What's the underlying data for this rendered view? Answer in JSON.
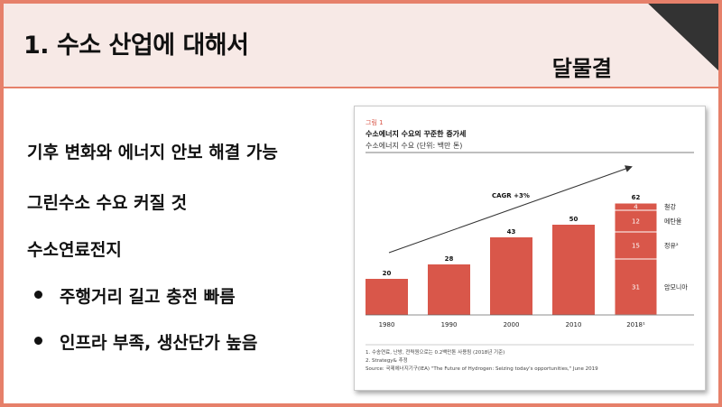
{
  "slide": {
    "title": "1. 수소 산업에 대해서",
    "author": "달물결",
    "points": [
      "기후 변화와 에너지 안보 해결 가능",
      "그린수소 수요 커질 것",
      "수소연료전지"
    ],
    "bullets": [
      "주행거리 길고 충전 빠름",
      "인프라 부족, 생산단가 높음"
    ]
  },
  "colors": {
    "accent": "#e6806a",
    "bar": "#d9574a",
    "header_bg": "#f7e9e6",
    "figure_label": "#d9574a"
  },
  "figure": {
    "label": "그림 1",
    "heading": "수소에너지 수요의 꾸준한 증가세",
    "subheading": "수소에너지 수요 (단위: 백만 톤)",
    "trend_label": "CAGR +3%",
    "notes": [
      "1. 수송연료, 난방, 전력원으로는 0.2백만톤 사용됨 (2018년 기준)",
      "2. Strategy& 추정",
      "Source: 국제에너지기구(IEA) \"The Future of Hydrogen: Seizing today's opportunities,\" June 2019"
    ]
  },
  "chart_data": {
    "type": "bar",
    "title": "수소에너지 수요 (단위: 백만 톤)",
    "categories": [
      "1980",
      "1990",
      "2000",
      "2010",
      "2018¹"
    ],
    "values": [
      20,
      28,
      43,
      50,
      62
    ],
    "stacked_last": [
      {
        "name": "암모니아",
        "value": 31
      },
      {
        "name": "정유²",
        "value": 15
      },
      {
        "name": "메탄올",
        "value": 12
      },
      {
        "name": "철강",
        "value": 4
      }
    ],
    "ylim": [
      0,
      65
    ]
  }
}
